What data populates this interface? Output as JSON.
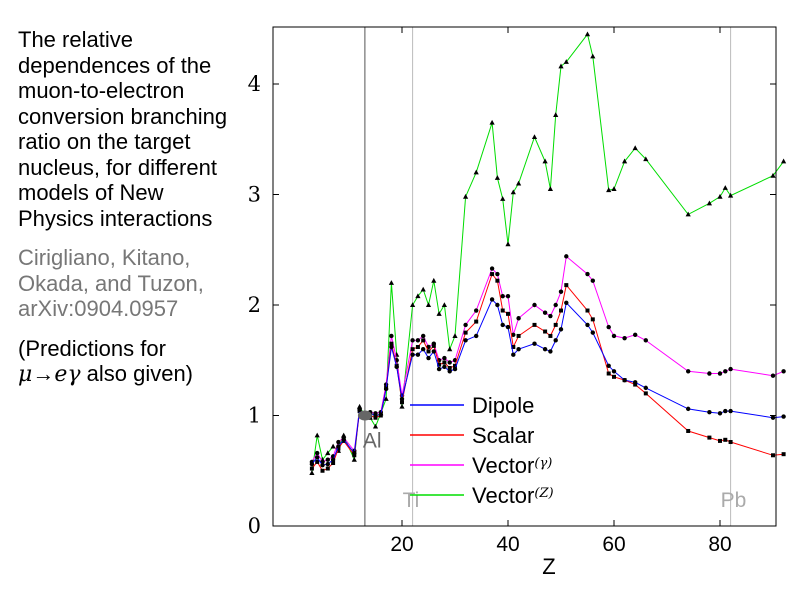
{
  "caption": {
    "text": "The relative dependences of the muon-to-electron conversion branching ratio on the target nucleus, for different models of New Physics interactions",
    "credit": "Cirigliano, Kitano, Okada, and Tuzon, arXiv:0904.0957",
    "note_open": "(Predictions for",
    "note_mu": "μ",
    "note_arrow": "→",
    "note_e": "e",
    "note_gamma": "γ",
    "note_close": " also given)"
  },
  "chart_data": {
    "type": "line",
    "xlabel": "Z",
    "ylabel": "",
    "xlim": [
      0,
      93
    ],
    "ylim": [
      0,
      4.5
    ],
    "xticks": [
      20,
      40,
      60,
      80
    ],
    "yticks": [
      0,
      1,
      2,
      3,
      4
    ],
    "legend_position": "bottom-center",
    "reference_lines": [
      {
        "label": "Al",
        "x": 13
      },
      {
        "label": "Ti",
        "x": 22
      },
      {
        "label": "Pb",
        "x": 82
      }
    ],
    "reference_point": {
      "label": "Al",
      "x": 13,
      "y": 1.0
    },
    "x": [
      3,
      4,
      5,
      6,
      7,
      8,
      9,
      11,
      12,
      13,
      14,
      15,
      16,
      17,
      18,
      19,
      20,
      22,
      23,
      24,
      25,
      26,
      27,
      28,
      29,
      30,
      32,
      34,
      37,
      38,
      39,
      40,
      41,
      42,
      45,
      47,
      48,
      49,
      50,
      51,
      55,
      56,
      59,
      60,
      62,
      64,
      66,
      74,
      78,
      80,
      81,
      82,
      90,
      92
    ],
    "series": [
      {
        "name": "Dipole",
        "color": "#0000ff",
        "values": [
          0.56,
          0.62,
          0.55,
          0.56,
          0.6,
          0.72,
          0.78,
          0.66,
          1.05,
          1.0,
          1.02,
          1.0,
          1.01,
          1.24,
          1.62,
          1.44,
          1.15,
          1.55,
          1.55,
          1.6,
          1.52,
          1.58,
          1.42,
          1.44,
          1.4,
          1.42,
          1.68,
          1.72,
          2.05,
          2.0,
          1.82,
          1.8,
          1.55,
          1.6,
          1.65,
          1.6,
          1.58,
          1.68,
          1.78,
          2.02,
          1.82,
          1.75,
          1.45,
          1.4,
          1.32,
          1.3,
          1.25,
          1.06,
          1.03,
          1.02,
          1.04,
          1.04,
          0.98,
          0.99
        ]
      },
      {
        "name": "Scalar",
        "color": "#ff0000",
        "values": [
          0.52,
          0.58,
          0.5,
          0.52,
          0.57,
          0.7,
          0.77,
          0.64,
          1.04,
          1.0,
          1.0,
          0.98,
          1.0,
          1.25,
          1.65,
          1.45,
          1.12,
          1.6,
          1.62,
          1.68,
          1.58,
          1.63,
          1.46,
          1.48,
          1.43,
          1.45,
          1.75,
          1.85,
          2.28,
          2.22,
          1.95,
          1.92,
          1.62,
          1.72,
          1.82,
          1.76,
          1.72,
          1.82,
          1.95,
          2.18,
          1.95,
          1.87,
          1.38,
          1.35,
          1.32,
          1.28,
          1.2,
          0.86,
          0.8,
          0.77,
          0.78,
          0.76,
          0.64,
          0.65
        ]
      },
      {
        "name": "Vector(γ)",
        "color": "#ff00ff",
        "values": [
          0.58,
          0.66,
          0.58,
          0.6,
          0.63,
          0.76,
          0.8,
          0.68,
          1.06,
          1.0,
          1.03,
          1.02,
          1.03,
          1.28,
          1.72,
          1.5,
          1.18,
          1.68,
          1.68,
          1.72,
          1.62,
          1.65,
          1.5,
          1.52,
          1.48,
          1.5,
          1.82,
          1.95,
          2.33,
          2.28,
          2.08,
          2.08,
          1.73,
          1.88,
          2.0,
          1.93,
          1.9,
          2.0,
          2.12,
          2.44,
          2.28,
          2.22,
          1.8,
          1.72,
          1.7,
          1.73,
          1.68,
          1.4,
          1.38,
          1.38,
          1.4,
          1.42,
          1.36,
          1.4
        ]
      },
      {
        "name": "Vector(Z)",
        "color": "#00dd00",
        "values": [
          0.48,
          0.82,
          0.6,
          0.66,
          0.72,
          0.68,
          0.82,
          0.6,
          1.08,
          1.0,
          0.98,
          0.9,
          1.02,
          1.15,
          2.2,
          1.55,
          1.08,
          2.0,
          2.08,
          2.14,
          2.0,
          2.22,
          1.92,
          2.0,
          1.6,
          1.72,
          2.98,
          3.2,
          3.65,
          3.15,
          2.96,
          2.55,
          3.02,
          3.1,
          3.52,
          3.3,
          3.05,
          3.72,
          4.16,
          4.2,
          4.45,
          4.25,
          3.04,
          3.05,
          3.3,
          3.42,
          3.32,
          2.82,
          2.92,
          2.98,
          3.06,
          2.99,
          3.17,
          3.3
        ]
      }
    ]
  }
}
